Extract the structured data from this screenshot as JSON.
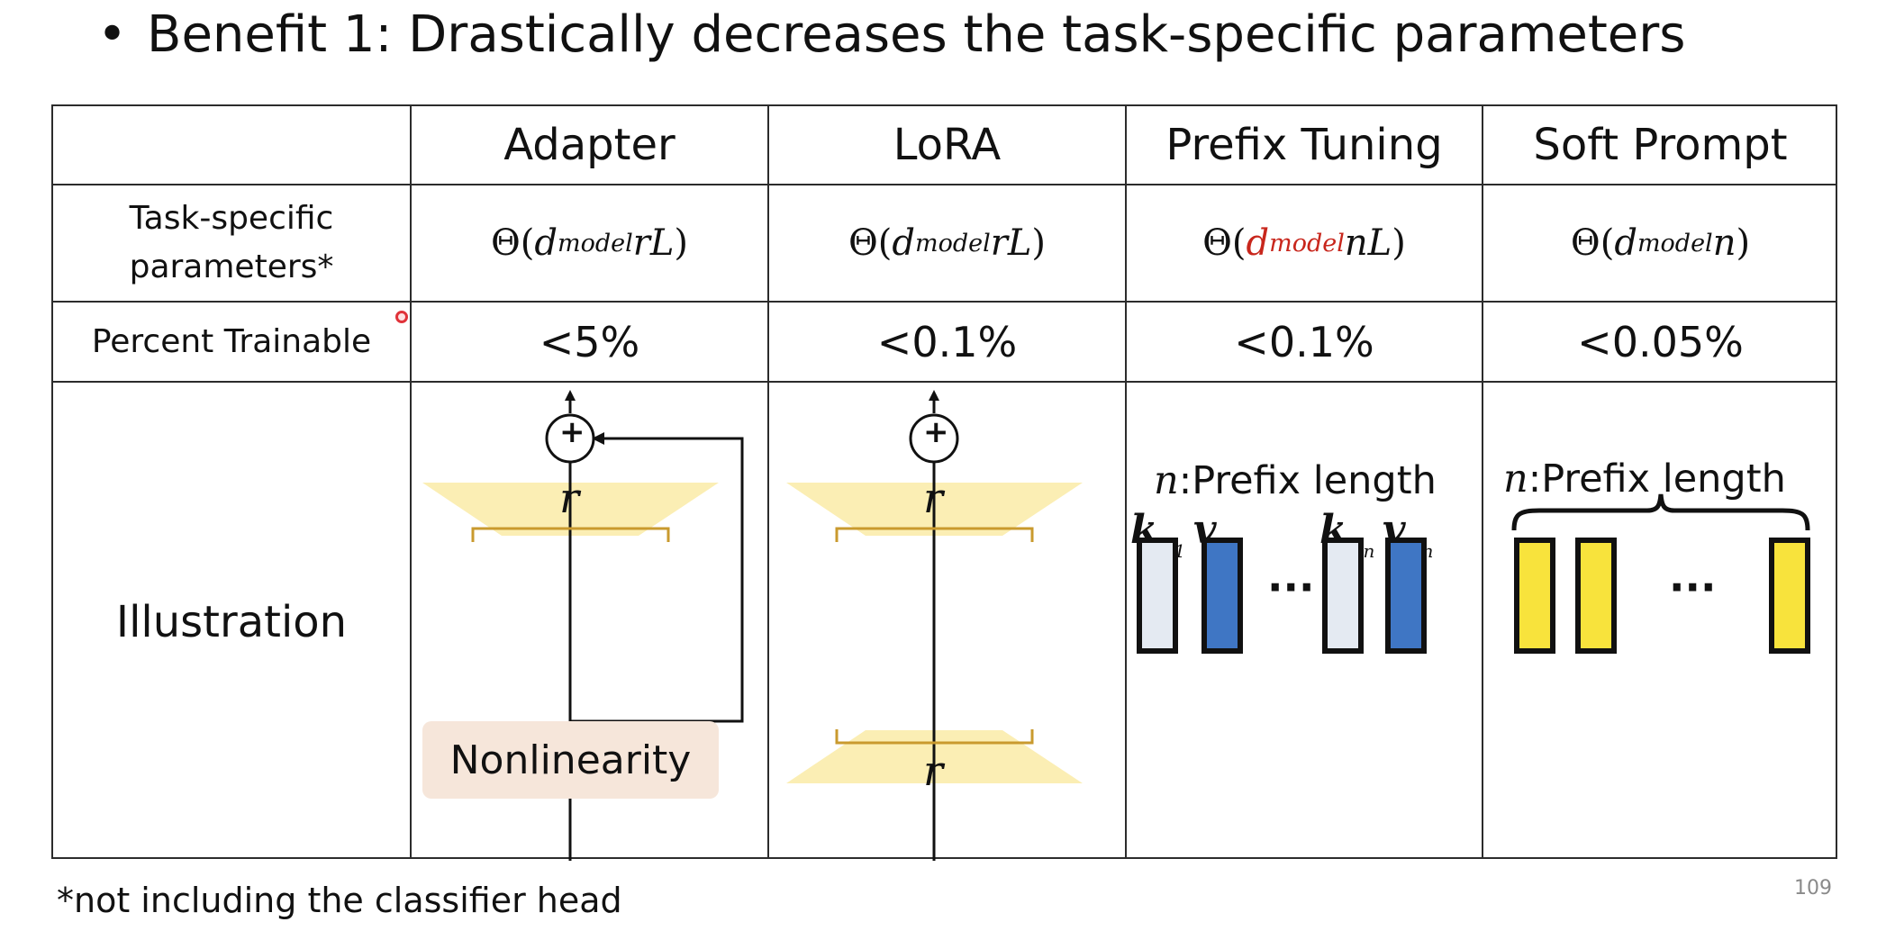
{
  "slide": {
    "bullet": "•",
    "title": "Benefit 1: Drastically decreases the task-specific parameters",
    "footnote": "*not including the classifier head",
    "page_number": "109"
  },
  "table": {
    "headers": [
      "",
      "Adapter",
      "LoRA",
      "Prefix Tuning",
      "Soft Prompt"
    ],
    "row_task_label_line1": "Task-specific",
    "row_task_label_line2": "parameters*",
    "row_percent_label": "Percent Trainable",
    "row_illustration_label": "Illustration",
    "formulas": [
      {
        "pre": "Θ(",
        "d": "d",
        "sub": "model",
        "rest": "rL",
        "close": ")",
        "highlight": false
      },
      {
        "pre": "Θ(",
        "d": "d",
        "sub": "model",
        "rest": "rL",
        "close": ")",
        "highlight": false
      },
      {
        "pre": "Θ(",
        "d": "d",
        "sub": "model",
        "rest": "nL",
        "close": ")",
        "highlight": true
      },
      {
        "pre": "Θ(",
        "d": "d",
        "sub": "model",
        "rest": "n",
        "close": ")",
        "highlight": false
      }
    ],
    "percents": [
      "<5%",
      "<0.1%",
      "<0.1%",
      "<0.05%"
    ]
  },
  "illustrations": {
    "adapter": {
      "plus": "+",
      "r_top": "r",
      "r_bottom": "r",
      "nonlinearity": "Nonlinearity"
    },
    "lora": {
      "plus": "+",
      "r_top": "r",
      "r_bottom": "r"
    },
    "prefix": {
      "n": "n",
      "caption": ":Prefix length",
      "labels": [
        {
          "main": "k",
          "sub": "p",
          "subsub": "1"
        },
        {
          "main": "v",
          "sub": "p",
          "subsub": "1"
        },
        {
          "main": "k",
          "sub": "p",
          "subsub": "n"
        },
        {
          "main": "v",
          "sub": "p",
          "subsub": "n"
        }
      ],
      "dots": "···"
    },
    "soft_prompt": {
      "n": "n",
      "caption": ":Prefix length",
      "dots": "···"
    }
  },
  "colors": {
    "highlight": "#c8261c",
    "trapezoid": "#fbeeb4",
    "bracket": "#c99a2e",
    "key_block": "#e4eaf2",
    "value_block": "#3f76c4",
    "soft_block": "#f8e33c",
    "nonlinearity_bg": "#f6e6da"
  }
}
